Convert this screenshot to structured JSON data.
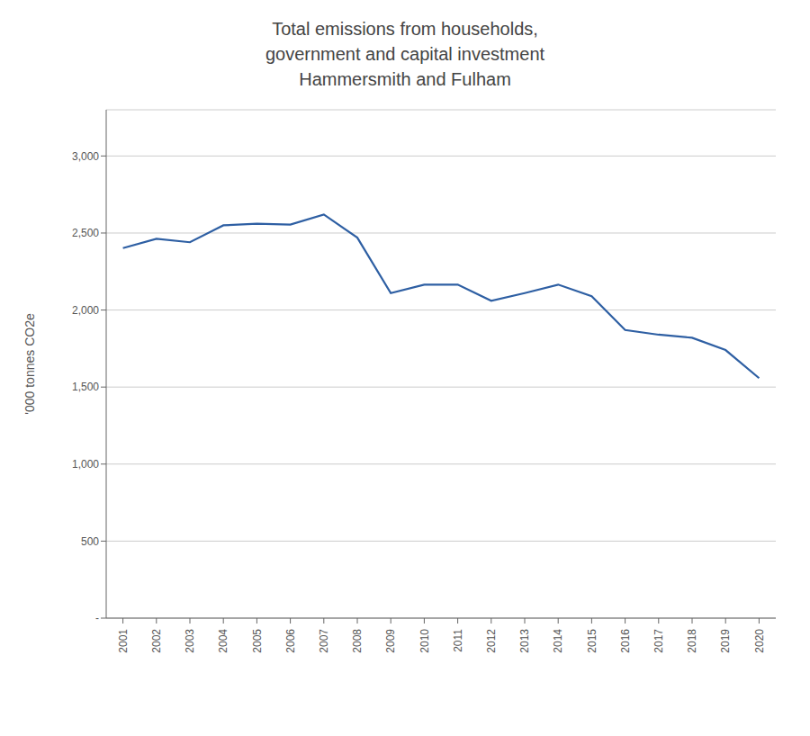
{
  "chart_data": {
    "type": "line",
    "title": "Total emissions from households,\ngovernment and capital investment\nHammersmith and Fulham",
    "y_label": "'000 tonnes CO2e",
    "x": [
      2001,
      2002,
      2003,
      2004,
      2005,
      2006,
      2007,
      2008,
      2009,
      2010,
      2011,
      2012,
      2013,
      2014,
      2015,
      2016,
      2017,
      2018,
      2019,
      2020
    ],
    "values": [
      2402,
      2462,
      2440,
      2550,
      2560,
      2555,
      2620,
      2470,
      2110,
      2165,
      2165,
      2060,
      2110,
      2165,
      2090,
      1870,
      1840,
      1820,
      1740,
      1558
    ],
    "color": "#2E5FA3",
    "xlim": [
      2000.5,
      2020.5
    ],
    "xticks": [
      2001,
      2002,
      2003,
      2004,
      2005,
      2006,
      2007,
      2008,
      2009,
      2010,
      2011,
      2012,
      2013,
      2014,
      2015,
      2016,
      2017,
      2018,
      2019,
      2020
    ],
    "ylim": [
      0,
      3300
    ],
    "yticks": [
      {
        "value": 0,
        "label": "-"
      },
      500,
      {
        "value": 1000,
        "label": "1,000"
      },
      {
        "value": 1500,
        "label": "1,500"
      },
      {
        "value": 2000,
        "label": "2,000"
      },
      {
        "value": 2500,
        "label": "2,500"
      },
      {
        "value": 3000,
        "label": "3,000"
      }
    ],
    "grid": true
  }
}
